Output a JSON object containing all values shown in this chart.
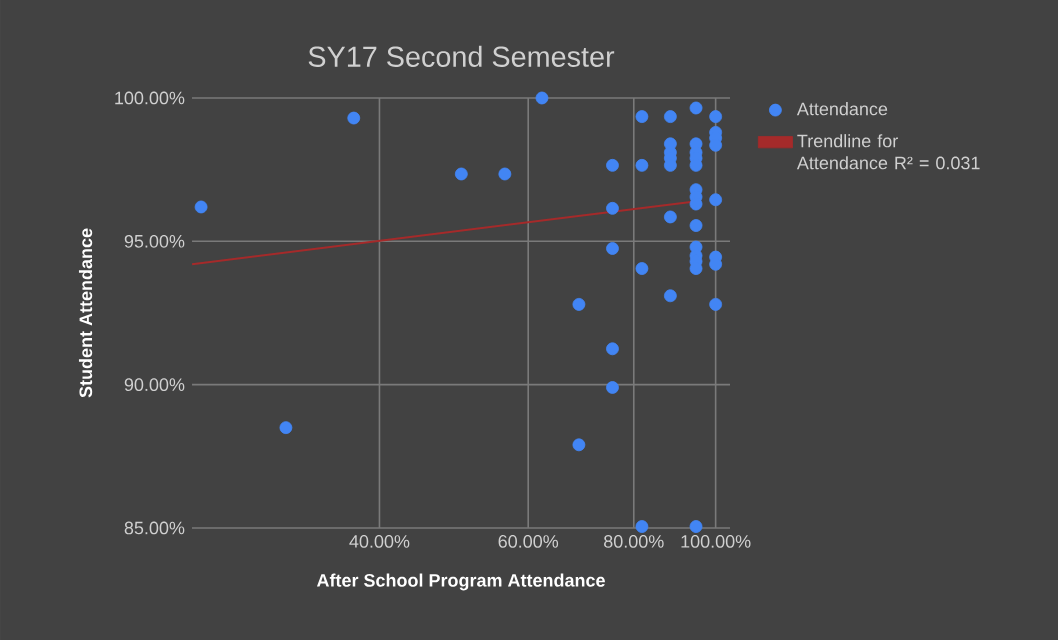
{
  "chart_data": {
    "type": "scatter",
    "title": "SY17 Second Semester",
    "xlabel": "After School Program Attendance",
    "ylabel": "Student Attendance",
    "log": "x",
    "xlim": [
      24,
      104
    ],
    "ylim": [
      85,
      100
    ],
    "xticks": [
      {
        "value": 40,
        "label": "40.00%"
      },
      {
        "value": 60,
        "label": "60.00%"
      },
      {
        "value": 80,
        "label": "80.00%"
      },
      {
        "value": 100,
        "label": "100.00%"
      }
    ],
    "yticks": [
      {
        "value": 85,
        "label": "85.00%"
      },
      {
        "value": 90,
        "label": "90.00%"
      },
      {
        "value": 95,
        "label": "95.00%"
      },
      {
        "value": 100,
        "label": "100.00%"
      }
    ],
    "grid": true,
    "legend": "right",
    "marker": "circle",
    "series": [
      {
        "name": "Attendance",
        "color": "#4285f4",
        "x": [
          24.6,
          37.3,
          50.0,
          56.3,
          31.0,
          62.3,
          68.9,
          68.9,
          75.5,
          75.5,
          75.5,
          75.5,
          75.5,
          81.8,
          81.8,
          81.8,
          81.8,
          88.4,
          88.4,
          88.4,
          88.4,
          88.4,
          88.4,
          88.4,
          94.8,
          94.8,
          94.8,
          94.8,
          94.8,
          94.8,
          94.8,
          94.8,
          94.8,
          94.8,
          94.8,
          94.8,
          94.8,
          94.8,
          100,
          100,
          100,
          100,
          100,
          100,
          100,
          100
        ],
        "values": [
          96.2,
          99.3,
          97.35,
          97.35,
          88.5,
          100,
          92.8,
          87.9,
          97.65,
          96.15,
          94.75,
          91.25,
          89.9,
          99.35,
          97.65,
          94.05,
          85.05,
          99.35,
          98.4,
          98.1,
          97.9,
          97.65,
          95.85,
          93.1,
          99.65,
          98.4,
          98.1,
          97.9,
          97.65,
          96.8,
          96.55,
          96.3,
          95.55,
          94.8,
          94.5,
          94.3,
          94.05,
          85.05,
          99.35,
          98.8,
          98.6,
          98.35,
          96.45,
          94.45,
          94.2,
          92.8
        ]
      },
      {
        "name": "Trendline for Attendance R² = 0.031",
        "type": "line",
        "marker": "none",
        "color": "#a52a2a",
        "x": [
          24,
          95
        ],
        "values": [
          94.2,
          96.4
        ]
      }
    ]
  }
}
